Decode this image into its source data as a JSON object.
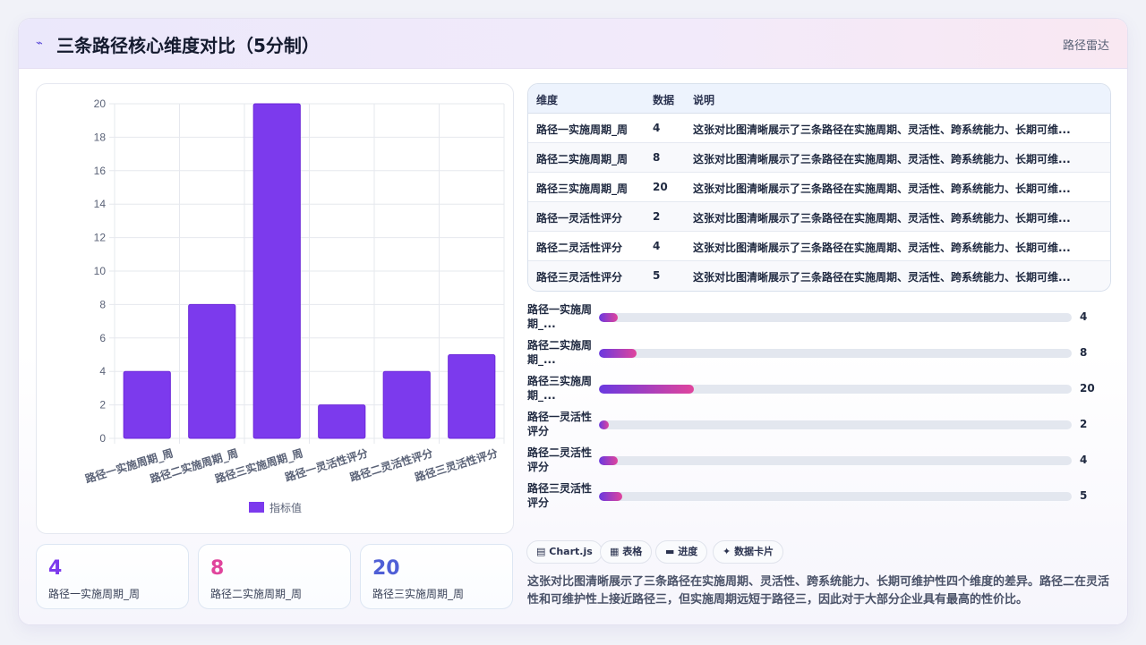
{
  "header": {
    "icon": "zigzag-icon",
    "title": "三条路径核心维度对比（5分制）",
    "tag": "路径雷达"
  },
  "chart_data": {
    "type": "bar",
    "categories": [
      "路径一实施周期_周",
      "路径二实施周期_周",
      "路径三实施周期_周",
      "路径一灵活性评分",
      "路径二灵活性评分",
      "路径三灵活性评分"
    ],
    "series": [
      {
        "name": "指标值",
        "values": [
          4,
          8,
          20,
          2,
          4,
          5
        ]
      }
    ],
    "ylim": [
      0,
      20
    ],
    "yticks": [
      0,
      2,
      4,
      6,
      8,
      10,
      12,
      14,
      16,
      18,
      20
    ],
    "grid": true,
    "legend": "bottom",
    "colors": {
      "bar": "#7c3aed",
      "bar_border": "#6d28d9",
      "grid": "#e6e8ee",
      "tick": "#5a6277"
    }
  },
  "stats": [
    {
      "value": "4",
      "label": "路径一实施周期_周",
      "color": "#7c3aed"
    },
    {
      "value": "8",
      "label": "路径二实施周期_周",
      "color": "#e0449c"
    },
    {
      "value": "20",
      "label": "路径三实施周期_周",
      "color": "#4f5fd6"
    }
  ],
  "table": {
    "headers": [
      "维度",
      "数据",
      "说明"
    ],
    "rows": [
      {
        "dim": "路径一实施周期_周",
        "val": "4",
        "desc": "这张对比图清晰展示了三条路径在实施周期、灵活性、跨系统能力、长期可维..."
      },
      {
        "dim": "路径二实施周期_周",
        "val": "8",
        "desc": "这张对比图清晰展示了三条路径在实施周期、灵活性、跨系统能力、长期可维..."
      },
      {
        "dim": "路径三实施周期_周",
        "val": "20",
        "desc": "这张对比图清晰展示了三条路径在实施周期、灵活性、跨系统能力、长期可维..."
      },
      {
        "dim": "路径一灵活性评分",
        "val": "2",
        "desc": "这张对比图清晰展示了三条路径在实施周期、灵活性、跨系统能力、长期可维..."
      },
      {
        "dim": "路径二灵活性评分",
        "val": "4",
        "desc": "这张对比图清晰展示了三条路径在实施周期、灵活性、跨系统能力、长期可维..."
      },
      {
        "dim": "路径三灵活性评分",
        "val": "5",
        "desc": "这张对比图清晰展示了三条路径在实施周期、灵活性、跨系统能力、长期可维..."
      }
    ]
  },
  "progress": {
    "max": 100,
    "items": [
      {
        "label": "路径一实施周期_...",
        "value": 4
      },
      {
        "label": "路径二实施周期_...",
        "value": 8
      },
      {
        "label": "路径三实施周期_...",
        "value": 20
      },
      {
        "label": "路径一灵活性评分",
        "value": 2
      },
      {
        "label": "路径二灵活性评分",
        "value": 4
      },
      {
        "label": "路径三灵活性评分",
        "value": 5
      }
    ]
  },
  "chips": [
    {
      "icon": "chart-icon",
      "glyph": "▤",
      "label": "Chart.js"
    },
    {
      "icon": "table-icon",
      "glyph": "▦",
      "label": "表格"
    },
    {
      "icon": "progress-icon",
      "glyph": "▬",
      "label": "进度"
    },
    {
      "icon": "sparkle-icon",
      "glyph": "✦",
      "label": "数据卡片"
    }
  ],
  "summary": "这张对比图清晰展示了三条路径在实施周期、灵活性、跨系统能力、长期可维护性四个维度的差异。路径二在灵活性和可维护性上接近路径三，但实施周期远短于路径三，因此对于大部分企业具有最高的性价比。"
}
